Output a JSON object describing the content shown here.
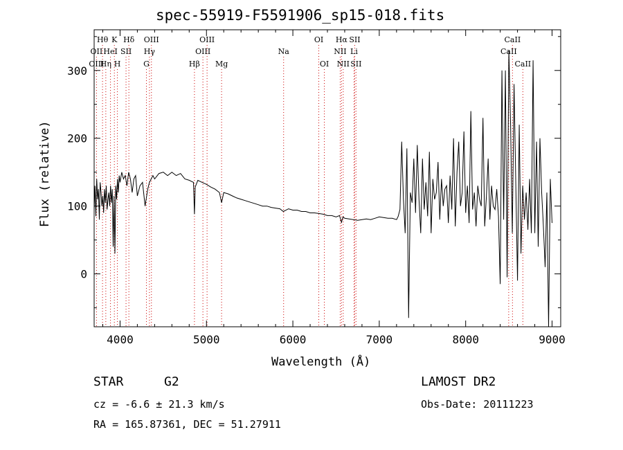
{
  "chart_data": {
    "type": "line",
    "title": "spec-55919-F5591906_sp15-018.fits",
    "xlabel": "Wavelength (Å)",
    "ylabel": "Flux (relative)",
    "xlim": [
      3700,
      9100
    ],
    "ylim": [
      -78,
      360
    ],
    "x_ticks": [
      4000,
      5000,
      6000,
      7000,
      8000,
      9000
    ],
    "y_ticks": [
      0,
      100,
      200,
      300
    ],
    "grid": false,
    "line_color": "#000000",
    "marker_color": "#cc0000",
    "series": [
      {
        "x": [
          3700,
          3710,
          3720,
          3730,
          3740,
          3750,
          3760,
          3770,
          3780,
          3790,
          3800,
          3810,
          3820,
          3830,
          3840,
          3850,
          3860,
          3870,
          3880,
          3890,
          3900,
          3910,
          3920,
          3930,
          3940,
          3950,
          3960,
          3970,
          3980,
          3990,
          4000,
          4020,
          4040,
          4060,
          4080,
          4100,
          4120,
          4140,
          4160,
          4180,
          4200,
          4230,
          4260,
          4290,
          4320,
          4340,
          4360,
          4380,
          4400,
          4450,
          4500,
          4550,
          4600,
          4650,
          4700,
          4750,
          4800,
          4850,
          4861,
          4870,
          4900,
          4950,
          5000,
          5050,
          5100,
          5150,
          5175,
          5200,
          5250,
          5300,
          5350,
          5400,
          5450,
          5500,
          5550,
          5600,
          5650,
          5700,
          5750,
          5800,
          5850,
          5890,
          5950,
          6000,
          6050,
          6100,
          6150,
          6200,
          6250,
          6300,
          6350,
          6400,
          6450,
          6500,
          6540,
          6563,
          6580,
          6600,
          6650,
          6700,
          6750,
          6800,
          6850,
          6900,
          6950,
          7000,
          7050,
          7100,
          7150,
          7200,
          7220,
          7240,
          7260,
          7280,
          7300,
          7320,
          7340,
          7360,
          7380,
          7400,
          7420,
          7440,
          7460,
          7480,
          7500,
          7520,
          7540,
          7560,
          7580,
          7600,
          7620,
          7640,
          7660,
          7680,
          7700,
          7720,
          7740,
          7760,
          7780,
          7800,
          7820,
          7840,
          7860,
          7880,
          7900,
          7920,
          7940,
          7960,
          7980,
          8000,
          8020,
          8040,
          8060,
          8080,
          8100,
          8120,
          8140,
          8160,
          8180,
          8200,
          8220,
          8240,
          8260,
          8280,
          8300,
          8320,
          8340,
          8360,
          8380,
          8400,
          8420,
          8440,
          8460,
          8480,
          8500,
          8520,
          8540,
          8560,
          8580,
          8600,
          8620,
          8640,
          8660,
          8680,
          8700,
          8720,
          8740,
          8760,
          8780,
          8800,
          8820,
          8840,
          8860,
          8880,
          8900,
          8920,
          8940,
          8960,
          8980,
          9000
        ],
        "y": [
          95,
          130,
          85,
          140,
          110,
          125,
          80,
          135,
          120,
          100,
          115,
          90,
          125,
          105,
          130,
          95,
          110,
          120,
          100,
          130,
          105,
          125,
          40,
          115,
          30,
          130,
          110,
          140,
          120,
          145,
          135,
          150,
          140,
          145,
          130,
          150,
          140,
          120,
          140,
          145,
          115,
          130,
          135,
          100,
          125,
          135,
          140,
          145,
          140,
          148,
          150,
          145,
          150,
          145,
          148,
          140,
          138,
          135,
          88,
          128,
          138,
          135,
          132,
          128,
          125,
          120,
          105,
          120,
          118,
          115,
          112,
          110,
          108,
          106,
          104,
          102,
          100,
          100,
          98,
          97,
          96,
          92,
          96,
          94,
          94,
          92,
          92,
          90,
          90,
          89,
          88,
          86,
          86,
          84,
          86,
          76,
          84,
          82,
          81,
          80,
          79,
          80,
          81,
          80,
          82,
          84,
          83,
          82,
          82,
          80,
          85,
          95,
          195,
          110,
          60,
          185,
          -65,
          120,
          105,
          170,
          90,
          190,
          110,
          60,
          170,
          95,
          135,
          85,
          180,
          60,
          140,
          110,
          120,
          165,
          80,
          140,
          100,
          125,
          130,
          75,
          145,
          95,
          200,
          70,
          150,
          195,
          100,
          120,
          210,
          90,
          130,
          75,
          240,
          95,
          120,
          70,
          130,
          110,
          100,
          230,
          70,
          115,
          170,
          80,
          130,
          100,
          95,
          125,
          85,
          -15,
          300,
          80,
          300,
          -5,
          330,
          220,
          60,
          280,
          135,
          -10,
          220,
          30,
          130,
          80,
          120,
          65,
          140,
          60,
          315,
          60,
          195,
          40,
          200,
          120,
          70,
          10,
          120,
          -78,
          140,
          75
        ]
      }
    ],
    "line_markers": [
      {
        "label": "Hθ",
        "x": 3797,
        "row": 1
      },
      {
        "label": "OII",
        "x": 3727,
        "row": 2
      },
      {
        "label": "OIII",
        "x": 3727,
        "row": 3
      },
      {
        "label": "K",
        "x": 3934,
        "row": 1
      },
      {
        "label": "HeI",
        "x": 3889,
        "row": 2
      },
      {
        "label": "SII",
        "x": 4069,
        "row": 2
      },
      {
        "label": "Hη",
        "x": 3835,
        "row": 3
      },
      {
        "label": "H",
        "x": 3969,
        "row": 3
      },
      {
        "label": "Hδ",
        "x": 4102,
        "row": 1
      },
      {
        "label": "OIII",
        "x": 4363,
        "row": 1
      },
      {
        "label": "Hγ",
        "x": 4340,
        "row": 2
      },
      {
        "label": "G",
        "x": 4305,
        "row": 3
      },
      {
        "label": "OIII",
        "x": 5007,
        "row": 1
      },
      {
        "label": "OIII",
        "x": 4959,
        "row": 2
      },
      {
        "label": "Hβ",
        "x": 4861,
        "row": 3
      },
      {
        "label": "Mg",
        "x": 5175,
        "row": 3
      },
      {
        "label": "Na",
        "x": 5893,
        "row": 2
      },
      {
        "label": "OI",
        "x": 6300,
        "row": 1
      },
      {
        "label": "OI",
        "x": 6364,
        "row": 3
      },
      {
        "label": "Hα",
        "x": 6563,
        "row": 1
      },
      {
        "label": "SII",
        "x": 6716,
        "row": 1
      },
      {
        "label": "NII",
        "x": 6548,
        "row": 2
      },
      {
        "label": "Li",
        "x": 6708,
        "row": 2
      },
      {
        "label": "NII",
        "x": 6583,
        "row": 3
      },
      {
        "label": "SII",
        "x": 6731,
        "row": 3
      },
      {
        "label": "CaII",
        "x": 8542,
        "row": 1
      },
      {
        "label": "CaII",
        "x": 8498,
        "row": 2
      },
      {
        "label": "CaII",
        "x": 8662,
        "row": 3
      }
    ]
  },
  "info": {
    "object_class": "STAR",
    "subclass": "G2",
    "survey": "LAMOST DR2",
    "cz": "cz = -6.6 ± 21.3 km/s",
    "obs_date": "Obs-Date: 20111223",
    "radec": "RA = 165.87361, DEC =  51.27911"
  }
}
